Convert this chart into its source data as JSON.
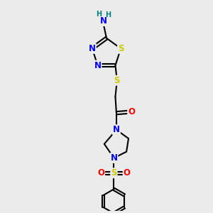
{
  "bg_color": "#ebebeb",
  "bond_color": "#000000",
  "bond_width": 1.5,
  "atom_colors": {
    "N": "#0000ff",
    "S": "#cccc00",
    "O": "#ff0000",
    "C": "#000000",
    "H": "#008080"
  },
  "font_size": 8.5
}
